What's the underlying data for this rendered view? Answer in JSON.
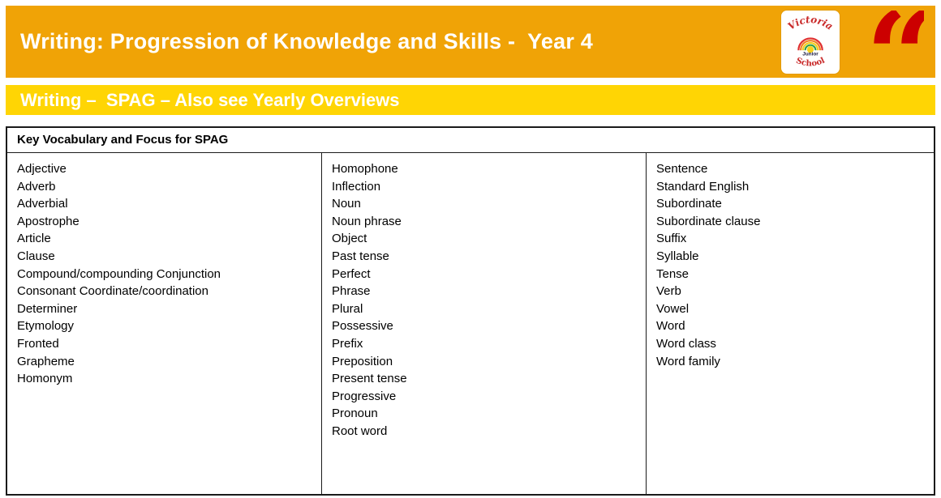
{
  "header": {
    "title": "Writing: Progression of Knowledge and Skills -  Year 4",
    "logo": {
      "top": "Victoria",
      "middle": "Junior",
      "bottom": "School"
    }
  },
  "section": {
    "title": "Writing –  SPAG – Also see Yearly Overviews"
  },
  "table": {
    "header": "Key Vocabulary and Focus for SPAG",
    "columns": [
      {
        "items": [
          "Adjective",
          "Adverb",
          "Adverbial",
          "Apostrophe",
          "Article",
          "Clause",
          "Compound/compounding Conjunction",
          "Consonant Coordinate/coordination",
          "Determiner",
          "Etymology",
          "Fronted",
          "Grapheme",
          "Homonym"
        ]
      },
      {
        "items": [
          "Homophone",
          "Inflection",
          "Noun",
          "Noun phrase",
          "Object",
          "Past tense",
          "Perfect",
          "Phrase",
          "Plural",
          "Possessive",
          "Prefix",
          "Preposition",
          "Present tense",
          "Progressive",
          "Pronoun",
          "Root word"
        ]
      },
      {
        "items": [
          "Sentence",
          "Standard English",
          "Subordinate",
          "Subordinate clause",
          "Suffix",
          "Syllable",
          "Tense",
          "Verb",
          "Vowel",
          "Word",
          "Word class",
          "Word family"
        ]
      }
    ]
  },
  "colors": {
    "top_banner": "#F0A306",
    "section_bar": "#FFD504",
    "banner_text": "#FFFFFF",
    "quote_icon": "#CC0000",
    "table_border": "#1A1A1A",
    "body_text": "#000000"
  },
  "icons": {
    "quote_glyph": "“"
  }
}
